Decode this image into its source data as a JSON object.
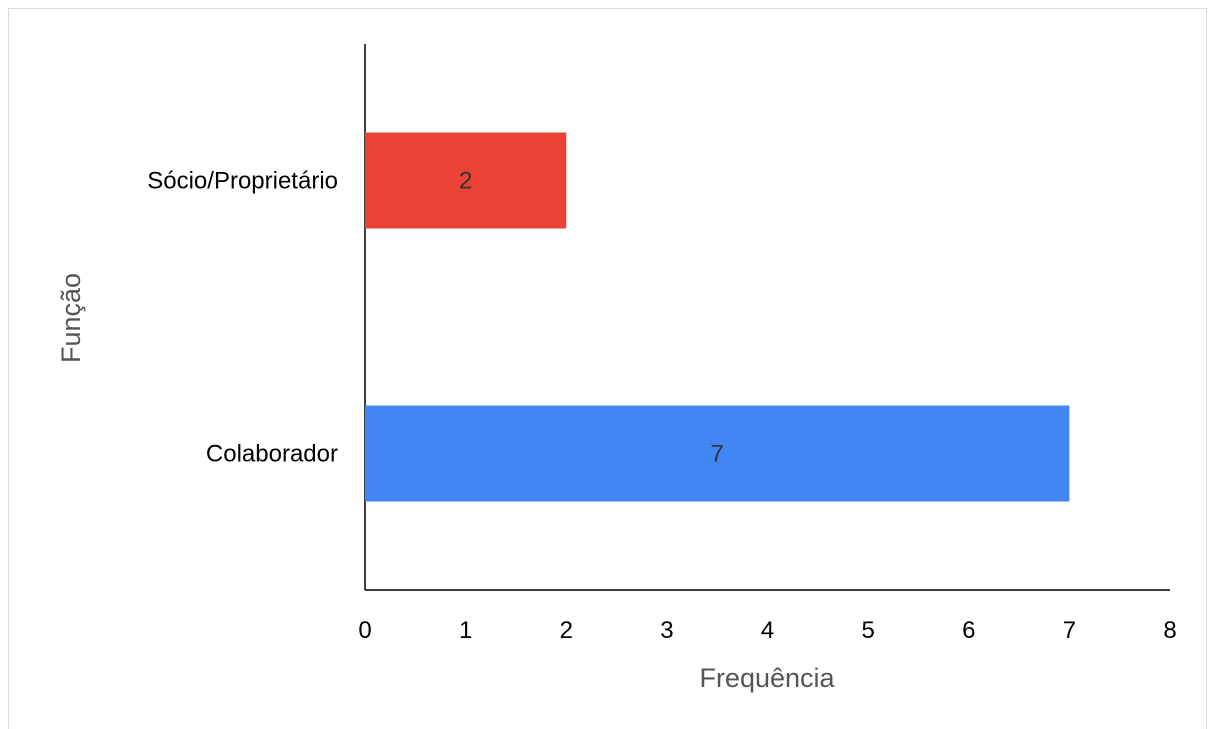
{
  "chart_data": {
    "type": "bar",
    "orientation": "horizontal",
    "categories": [
      "Sócio/Proprietário",
      "Colaborador"
    ],
    "values": [
      2,
      7
    ],
    "colors": [
      "#ea4335",
      "#4285f4"
    ],
    "data_labels": [
      "2",
      "7"
    ],
    "xlabel": "Frequência",
    "ylabel": "Função",
    "xlim": [
      0,
      8
    ],
    "xticks": [
      "0",
      "1",
      "2",
      "3",
      "4",
      "5",
      "6",
      "7",
      "8"
    ],
    "grid": false,
    "legend": "none"
  }
}
